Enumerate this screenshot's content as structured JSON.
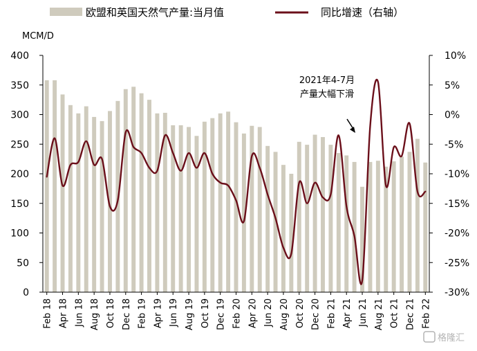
{
  "chart_data": {
    "type": "bar+line",
    "title": "",
    "y_left_unit_label": "MCM/D",
    "y_left_lim": [
      0,
      400
    ],
    "y_left_ticks": [
      0,
      50,
      100,
      150,
      200,
      250,
      300,
      350,
      400
    ],
    "y_right_lim": [
      -30,
      10
    ],
    "y_right_ticks": [
      -30,
      -25,
      -20,
      -15,
      -10,
      -5,
      0,
      5,
      10
    ],
    "y_right_ticks_labels": [
      "-30%",
      "-25%",
      "-20%",
      "-15%",
      "-10%",
      "-5%",
      "0%",
      "5%",
      "10%"
    ],
    "grid": false,
    "legend_position": "top",
    "months": [
      "Feb 18",
      "Mar 18",
      "Apr 18",
      "May 18",
      "Jun 18",
      "Jul 18",
      "Aug 18",
      "Sep 18",
      "Oct 18",
      "Nov 18",
      "Dec 18",
      "Jan 19",
      "Feb 19",
      "Mar 19",
      "Apr 19",
      "May 19",
      "Jun 19",
      "Jul 19",
      "Aug 19",
      "Sep 19",
      "Oct 19",
      "Nov 19",
      "Dec 19",
      "Jan 20",
      "Feb 20",
      "Mar 20",
      "Apr 20",
      "May 20",
      "Jun 20",
      "Jul 20",
      "Aug 20",
      "Sep 20",
      "Oct 20",
      "Nov 20",
      "Dec 20",
      "Jan 21",
      "Feb 21",
      "Mar 21",
      "Apr 21",
      "May 21",
      "Jun 21",
      "Jul 21",
      "Aug 21",
      "Sep 21",
      "Oct 21",
      "Nov 21",
      "Dec 21",
      "Jan 22",
      "Feb 22"
    ],
    "x_tick_labels": [
      "Feb 18",
      "Apr 18",
      "Jun 18",
      "Aug 18",
      "Oct 18",
      "Dec 18",
      "Feb 19",
      "Apr 19",
      "Jun 19",
      "Aug 19",
      "Oct 19",
      "Dec 19",
      "Feb 20",
      "Apr 20",
      "Jun 20",
      "Aug 20",
      "Oct 20",
      "Dec 20",
      "Feb 21",
      "Apr 21",
      "Jun 21",
      "Aug 21",
      "Oct 21",
      "Dec 21",
      "Feb 22"
    ],
    "series": [
      {
        "name": "欧盟和英国天然气产量:当月值",
        "type": "bar",
        "axis": "left",
        "color": "#cfcbbd",
        "values": [
          358,
          358,
          334,
          316,
          302,
          314,
          296,
          289,
          306,
          323,
          343,
          347,
          336,
          325,
          302,
          303,
          282,
          282,
          279,
          264,
          288,
          294,
          302,
          305,
          287,
          268,
          281,
          279,
          247,
          237,
          215,
          200,
          254,
          249,
          266,
          262,
          249,
          235,
          231,
          220,
          178,
          220,
          222,
          212,
          221,
          229,
          237,
          259,
          219
        ]
      },
      {
        "name": "同比增速（右轴）",
        "type": "line",
        "axis": "right",
        "color": "#6b0f1a",
        "values": [
          -10.5,
          -4.0,
          -12.0,
          -8.5,
          -8.0,
          -4.5,
          -8.5,
          -7.5,
          -15.5,
          -14.5,
          -3.0,
          -5.5,
          -6.5,
          -9.0,
          -9.5,
          -3.5,
          -6.5,
          -9.5,
          -6.5,
          -9.0,
          -6.5,
          -10.0,
          -11.5,
          -12.0,
          -14.5,
          -18.0,
          -7.0,
          -9.0,
          -13.5,
          -17.5,
          -22.5,
          -23.5,
          -11.5,
          -15.0,
          -11.5,
          -14.0,
          -13.5,
          -3.5,
          -15.5,
          -20.5,
          -28.0,
          -2.0,
          5.5,
          -12.0,
          -5.5,
          -7.0,
          -1.5,
          -13.0,
          -13.0
        ]
      }
    ],
    "annotations": [
      {
        "text": [
          "2021年4-7月",
          "产量大幅下滑"
        ]
      }
    ],
    "watermark": "格隆汇"
  }
}
